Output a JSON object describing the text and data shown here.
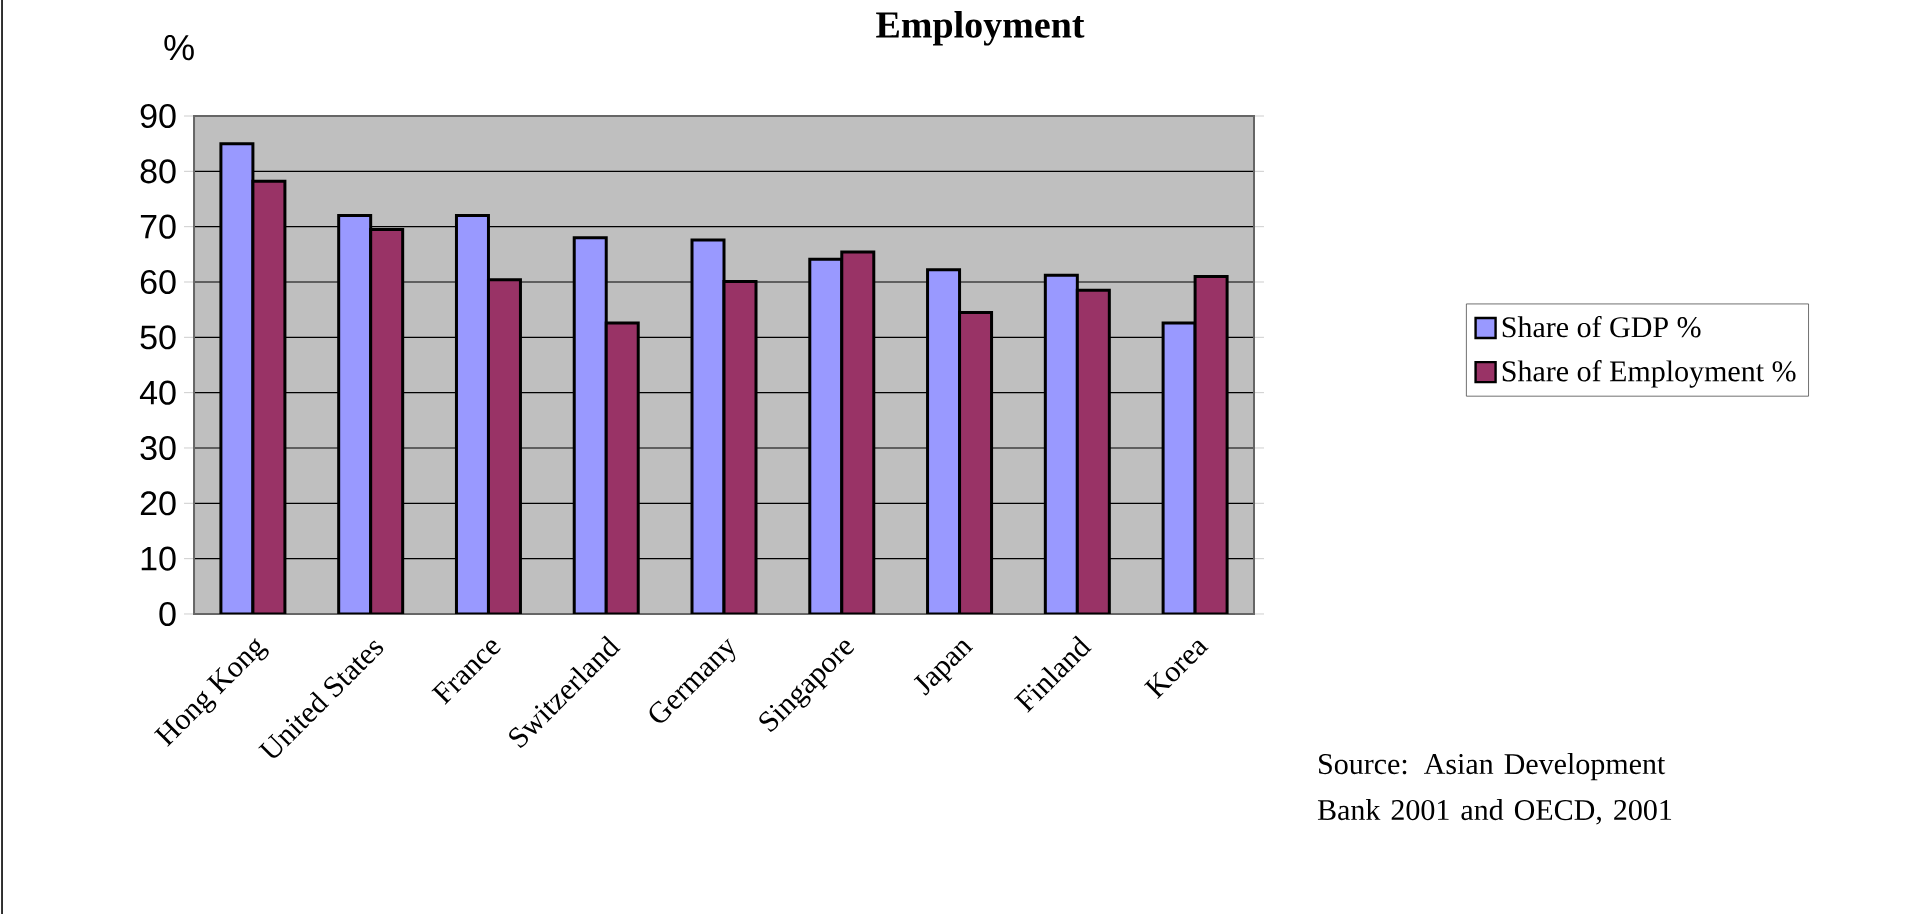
{
  "chart_data": {
    "type": "bar",
    "title": "Employment",
    "ylabel": "%",
    "categories": [
      "Hong Kong",
      "United States",
      "France",
      "Switzerland",
      "Germany",
      "Singapore",
      "Japan",
      "Finland",
      "Korea"
    ],
    "series": [
      {
        "name": "Share of GDP %",
        "color": "#9999ff",
        "values": [
          85,
          72,
          72,
          68,
          67.6,
          64.1,
          62.2,
          61.2,
          52.6
        ]
      },
      {
        "name": "Share of Employment %",
        "color": "#993366",
        "values": [
          78.2,
          69.5,
          60.4,
          52.6,
          60.1,
          65.4,
          54.5,
          58.5,
          61
        ]
      }
    ],
    "ylim": [
      0,
      90
    ],
    "yticks": [
      0,
      10,
      20,
      30,
      40,
      50,
      60,
      70,
      80,
      90
    ],
    "grid": "y",
    "legend": "right",
    "annotations": [
      "Source: Asian Development Bank 2001 and OECD, 2001"
    ]
  }
}
